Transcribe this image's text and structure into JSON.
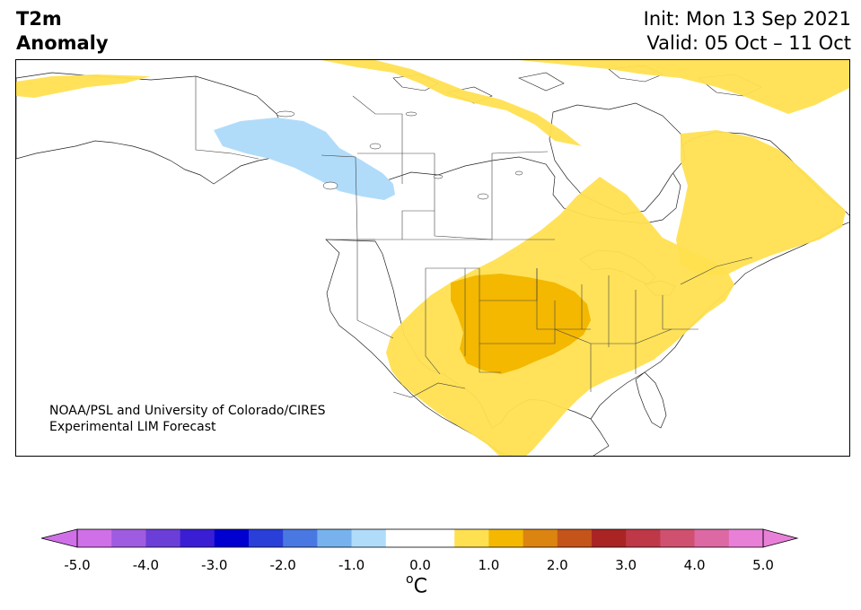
{
  "header": {
    "variable": "T2m",
    "field": "Anomaly",
    "init": "Init: Mon 13 Sep 2021",
    "valid": "Valid: 05 Oct – 11 Oct"
  },
  "credit": {
    "line1": "NOAA/PSL and University of Colorado/CIRES",
    "line2": "Experimental LIM Forecast"
  },
  "colorbar": {
    "units_base": "C",
    "units_sup": "o",
    "ticks": [
      "-5.0",
      "-4.0",
      "-3.0",
      "-2.0",
      "-1.0",
      "0.0",
      "1.0",
      "2.0",
      "3.0",
      "4.0",
      "5.0"
    ],
    "levels_min": -5.0,
    "levels_max": 5.0,
    "level_step": 0.5,
    "colors": [
      "#d070e8",
      "#a05ce0",
      "#6c3ed8",
      "#3a1ed4",
      "#0000d0",
      "#2a3ed8",
      "#4a78e2",
      "#78b2ee",
      "#b0dcfa",
      "#ffffff",
      "#ffffff",
      "#ffe050",
      "#f4b800",
      "#dc8410",
      "#c4541a",
      "#aa2424",
      "#be3848",
      "#d05070",
      "#dc68a4",
      "#e880d8"
    ],
    "under_color": "#d070e8",
    "over_color": "#e880d8"
  },
  "map": {
    "region": "North America",
    "anomaly_colors": {
      "cold_1": "#b0dcfa",
      "warm_1": "#ffe050",
      "warm_2": "#f4b800"
    }
  }
}
